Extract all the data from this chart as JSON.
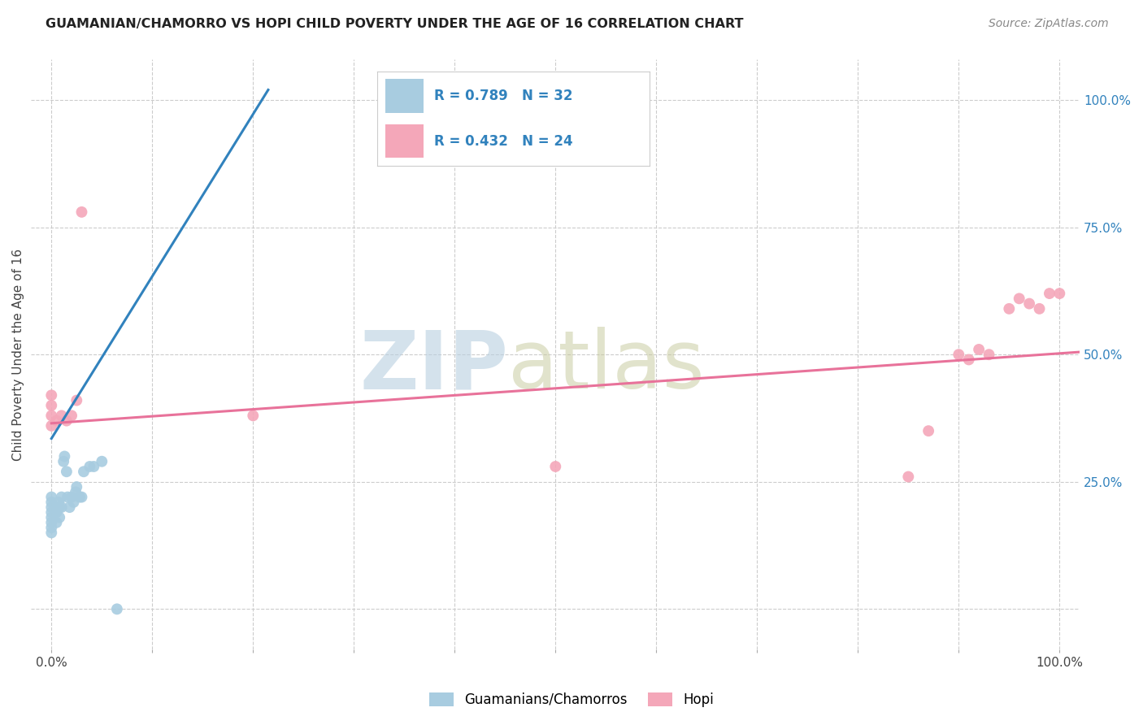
{
  "title": "GUAMANIAN/CHAMORRO VS HOPI CHILD POVERTY UNDER THE AGE OF 16 CORRELATION CHART",
  "source": "Source: ZipAtlas.com",
  "ylabel": "Child Poverty Under the Age of 16",
  "xlim": [
    -0.02,
    1.02
  ],
  "ylim": [
    -0.08,
    1.08
  ],
  "xtick_positions": [
    0.0,
    0.1,
    0.2,
    0.3,
    0.4,
    0.5,
    0.6,
    0.7,
    0.8,
    0.9,
    1.0
  ],
  "xticklabels": [
    "0.0%",
    "",
    "",
    "",
    "",
    "",
    "",
    "",
    "",
    "",
    "100.0%"
  ],
  "ytick_positions": [
    0.0,
    0.25,
    0.5,
    0.75,
    1.0
  ],
  "yticklabels_right": [
    "",
    "25.0%",
    "50.0%",
    "75.0%",
    "100.0%"
  ],
  "guam_color": "#a8cce0",
  "hopi_color": "#f4a7b9",
  "guam_line_color": "#3182bd",
  "hopi_line_color": "#e8729a",
  "R_guam": 0.789,
  "N_guam": 32,
  "R_hopi": 0.432,
  "N_hopi": 24,
  "background_color": "#ffffff",
  "guam_line_x": [
    0.0,
    0.215
  ],
  "guam_line_y": [
    0.335,
    1.02
  ],
  "hopi_line_x": [
    0.0,
    1.02
  ],
  "hopi_line_y": [
    0.365,
    0.505
  ],
  "guam_points_x": [
    0.0,
    0.0,
    0.0,
    0.0,
    0.0,
    0.0,
    0.0,
    0.0,
    0.005,
    0.005,
    0.007,
    0.007,
    0.008,
    0.008,
    0.01,
    0.01,
    0.012,
    0.013,
    0.015,
    0.016,
    0.018,
    0.02,
    0.022,
    0.024,
    0.025,
    0.028,
    0.03,
    0.032,
    0.038,
    0.042,
    0.05,
    0.065
  ],
  "guam_points_y": [
    0.15,
    0.16,
    0.17,
    0.18,
    0.19,
    0.2,
    0.21,
    0.22,
    0.17,
    0.19,
    0.2,
    0.21,
    0.18,
    0.2,
    0.2,
    0.22,
    0.29,
    0.3,
    0.27,
    0.22,
    0.2,
    0.22,
    0.21,
    0.23,
    0.24,
    0.22,
    0.22,
    0.27,
    0.28,
    0.28,
    0.29,
    0.0
  ],
  "hopi_points_x": [
    0.0,
    0.0,
    0.0,
    0.0,
    0.005,
    0.01,
    0.015,
    0.02,
    0.025,
    0.03,
    0.2,
    0.5,
    0.85,
    0.87,
    0.9,
    0.91,
    0.92,
    0.93,
    0.95,
    0.96,
    0.97,
    0.98,
    0.99,
    1.0
  ],
  "hopi_points_y": [
    0.36,
    0.38,
    0.4,
    0.42,
    0.37,
    0.38,
    0.37,
    0.38,
    0.41,
    0.78,
    0.38,
    0.28,
    0.26,
    0.35,
    0.5,
    0.49,
    0.51,
    0.5,
    0.59,
    0.61,
    0.6,
    0.59,
    0.62,
    0.62
  ]
}
